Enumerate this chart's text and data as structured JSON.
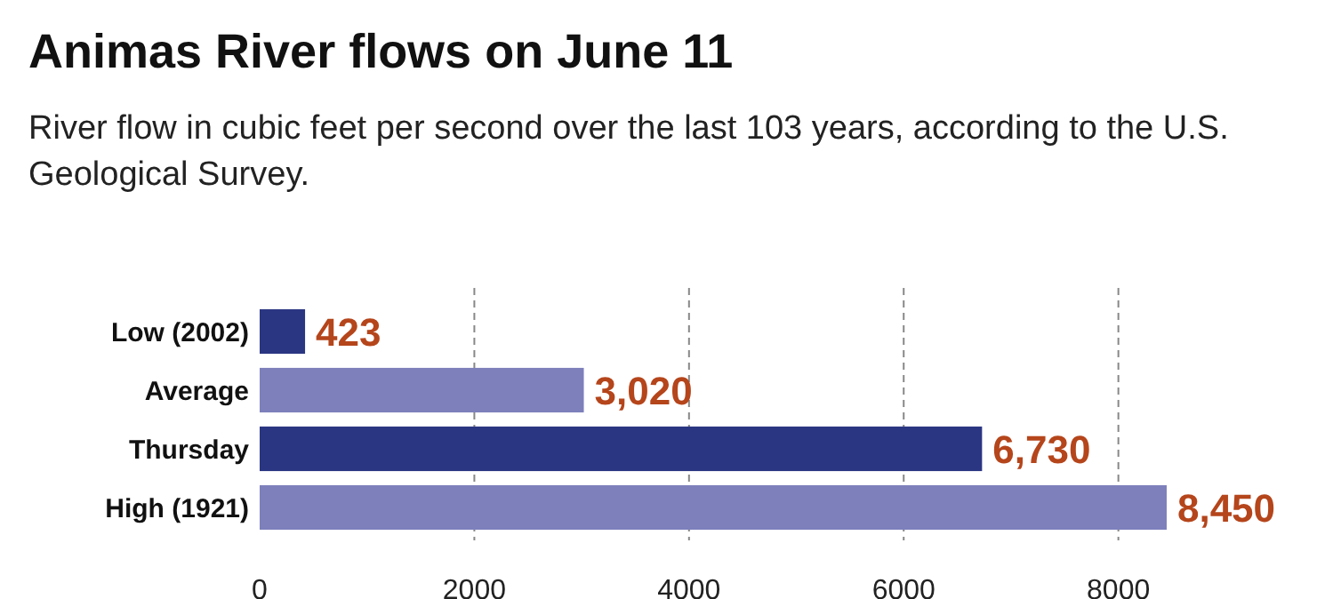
{
  "chart_data": {
    "type": "bar",
    "orientation": "horizontal",
    "title": "Animas River flows on June 11",
    "subtitle": "River flow in cubic feet per second over the last 103 years, according to the U.S. Geological Survey.",
    "categories": [
      "Low (2002)",
      "Average",
      "Thursday",
      "High (1921)"
    ],
    "values": [
      423,
      3020,
      6730,
      8450
    ],
    "colors": [
      "#2b3682",
      "#7d80bb",
      "#2b3682",
      "#7d80bb"
    ],
    "value_labels": [
      "423",
      "3,020",
      "6,730",
      "8,450"
    ],
    "xlim": [
      0,
      8500
    ],
    "xticks": [
      0,
      2000,
      4000,
      6000,
      8000
    ],
    "grid": "x"
  }
}
